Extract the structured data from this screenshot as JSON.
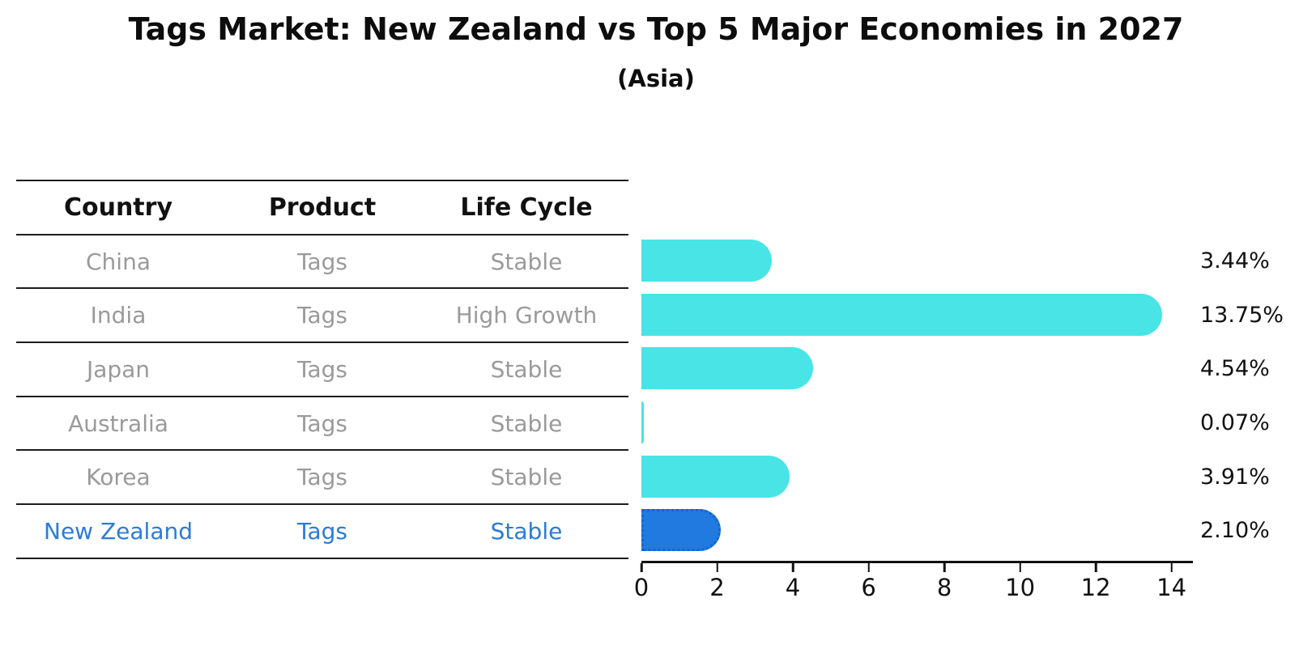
{
  "title": "Tags Market: New Zealand vs Top 5 Major Economies in 2027",
  "subtitle": "(Asia)",
  "table": {
    "headers": [
      "Country",
      "Product",
      "Life Cycle"
    ],
    "rows": [
      {
        "country": "China",
        "product": "Tags",
        "life_cycle": "Stable",
        "highlight": false
      },
      {
        "country": "India",
        "product": "Tags",
        "life_cycle": "High Growth",
        "highlight": false
      },
      {
        "country": "Japan",
        "product": "Tags",
        "life_cycle": "Stable",
        "highlight": false
      },
      {
        "country": "Australia",
        "product": "Tags",
        "life_cycle": "Stable",
        "highlight": false
      },
      {
        "country": "Korea",
        "product": "Tags",
        "life_cycle": "Stable",
        "highlight": false
      },
      {
        "country": "New Zealand",
        "product": "Tags",
        "life_cycle": "Stable",
        "highlight": true
      }
    ]
  },
  "chart_data": {
    "type": "bar",
    "orientation": "horizontal",
    "title": "Tags Market: New Zealand vs Top 5 Major Economies in 2027",
    "subtitle": "(Asia)",
    "categories": [
      "China",
      "India",
      "Japan",
      "Australia",
      "Korea",
      "New Zealand"
    ],
    "values": [
      3.44,
      13.75,
      4.54,
      0.07,
      3.91,
      2.1
    ],
    "value_labels": [
      "3.44%",
      "13.75%",
      "4.54%",
      "0.07%",
      "3.91%",
      "2.10%"
    ],
    "highlight_index": 5,
    "xlabel": "",
    "ylabel": "",
    "xlim": [
      0,
      14.5
    ],
    "x_ticks": [
      0,
      2,
      4,
      6,
      8,
      10,
      12,
      14
    ],
    "grid": false,
    "legend": false,
    "colors": {
      "bar": "#48e4e6",
      "highlight_bar": "#207ae0",
      "highlight_bar_border": "#1565d5",
      "highlight_text": "#2b7cd6",
      "table_text": "#9a9a9a",
      "header_text": "#111111",
      "axis": "#111111"
    }
  }
}
